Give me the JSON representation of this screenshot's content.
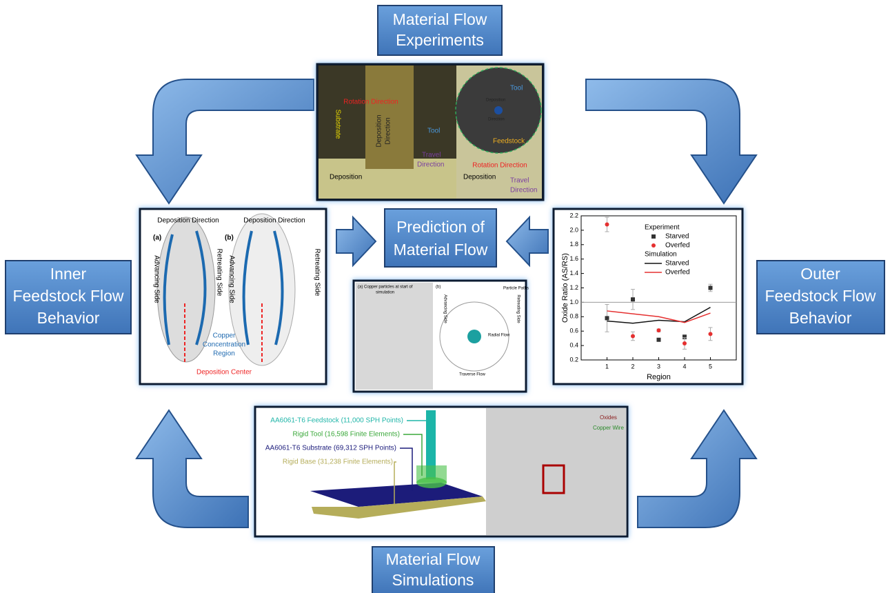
{
  "boxes": {
    "experiments": [
      "Material Flow",
      "Experiments"
    ],
    "prediction": [
      "Prediction of",
      "Material Flow"
    ],
    "inner": [
      "Inner",
      "Feedstock Flow",
      "Behavior"
    ],
    "outer": [
      "Outer",
      "Feedstock Flow",
      "Behavior"
    ],
    "simulations": [
      "Material Flow",
      "Simulations"
    ]
  },
  "experiment_panel": {
    "left": [
      "Substrate",
      "Rotation Direction",
      "Deposition",
      "Direction",
      "Tool",
      "Travel",
      "Direction",
      "Deposition"
    ],
    "right": [
      "Tool",
      "Deposition",
      "Direction",
      "Feedstock",
      "Rotation Direction",
      "Deposition",
      "Travel",
      "Direction"
    ]
  },
  "inner_panel": [
    "Deposition Direction",
    "Deposition Direction",
    "(a)",
    "(b)",
    "Advancing Side",
    "Retreating Side",
    "Advancing Side",
    "Retreating Side",
    "Copper",
    "Concentration",
    "Region",
    "Deposition Center"
  ],
  "path_panel": [
    "(a)",
    "Copper particles at start of",
    "simulation",
    "(b)",
    "Particle Paths",
    "Radial Flow",
    "Traverse Flow",
    "Advancing Side",
    "Retreating Side"
  ],
  "simulation_panel": {
    "labels": [
      "AA6061-T6 Feedstock (11,000 SPH Points)",
      "Rigid Tool (16,598 Finite Elements)",
      "AA6061-T6 Substrate (69,312 SPH Points)",
      "Rigid Base (31,238 Finite Elements)"
    ],
    "colors": [
      "#1fb5a8",
      "#3aa83a",
      "#1a1a7a",
      "#b5ad5a"
    ],
    "right": [
      "Oxides",
      "Copper Wire"
    ]
  },
  "chart_data": {
    "type": "scatter",
    "x_label": "Region",
    "y_label": "Oxide Ratio (AS/RS)",
    "x": [
      1,
      2,
      3,
      4,
      5
    ],
    "xlim": [
      0,
      6
    ],
    "xticks": [
      1,
      2,
      3,
      4,
      5
    ],
    "ylim": [
      0.2,
      2.2
    ],
    "yticks": [
      {
        "value": 0.2,
        "label": "0.2"
      },
      {
        "value": 0.4,
        "label": "0.4"
      },
      {
        "value": 0.6,
        "label": "0.6"
      },
      {
        "value": 0.8,
        "label": "0.8"
      },
      {
        "value": 1,
        "label": "1.0"
      },
      {
        "value": 1.2,
        "label": "1.2"
      },
      {
        "value": 1.4,
        "label": "1.4"
      },
      {
        "value": 1.6,
        "label": "1.6"
      },
      {
        "value": 1.8,
        "label": "1.8"
      },
      {
        "value": 2,
        "label": "2.0"
      },
      {
        "value": 2.2,
        "label": "2.2"
      }
    ],
    "reference_line": 1,
    "legend_groups": [
      "Experiment",
      "Simulation"
    ],
    "series": [
      {
        "name": "Starved",
        "group": 0,
        "kind": "scatter",
        "color": "#333333",
        "values": [
          0.78,
          1.04,
          0.48,
          0.52,
          1.2
        ],
        "errors": [
          0.19,
          0.14,
          0.02,
          0.03,
          0.05
        ]
      },
      {
        "name": "Overfed",
        "group": 0,
        "kind": "scatter",
        "color": "#e53030",
        "values": [
          2.08,
          0.53,
          0.61,
          0.43,
          0.56
        ],
        "errors": [
          0.1,
          0.06,
          0.02,
          0.08,
          0.09
        ]
      },
      {
        "name": "Starved",
        "group": 1,
        "kind": "line",
        "color": "#111111",
        "values": [
          0.74,
          0.71,
          0.75,
          0.73,
          0.93
        ]
      },
      {
        "name": "Overfed",
        "group": 1,
        "kind": "line",
        "color": "#e53030",
        "values": [
          0.88,
          0.84,
          0.8,
          0.72,
          0.85
        ]
      }
    ]
  }
}
